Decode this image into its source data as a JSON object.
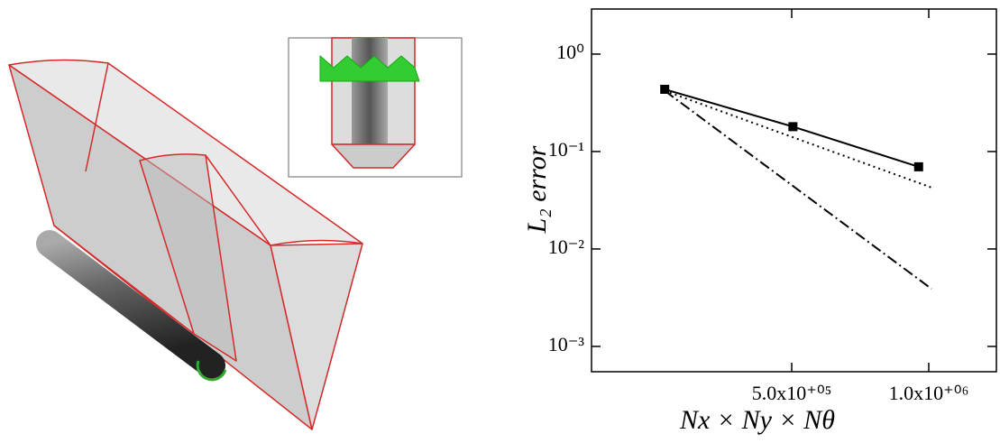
{
  "chart_data": {
    "type": "line",
    "x_label": "Nx × Ny × Nθ",
    "y_label": "L₂ error",
    "x_log": true,
    "y_log": true,
    "xlim": [
      181600,
      1408000
    ],
    "ylim": [
      0.00055,
      2.9
    ],
    "xticks": [
      {
        "value": 500000,
        "label": "5.0x10⁺⁰⁵"
      },
      {
        "value": 1000000,
        "label": "1.0x10⁺⁰⁶"
      }
    ],
    "yticks": [
      {
        "value": 1,
        "label": "10⁰"
      },
      {
        "value": 0.1,
        "label": "10⁻¹"
      },
      {
        "value": 0.01,
        "label": "10⁻²"
      },
      {
        "value": 0.001,
        "label": "10⁻³"
      }
    ],
    "series": [
      {
        "color": "#000000",
        "dash": "solid",
        "marker": "square",
        "x": [
          263000,
          503000,
          950000
        ],
        "values": [
          0.435,
          0.18,
          0.0697
        ]
      },
      {
        "color": "#000000",
        "dash": "dotted",
        "x": [
          263000,
          1014000
        ],
        "values": [
          0.42,
          0.0427
        ]
      },
      {
        "color": "#000000",
        "dash": "dashdot",
        "x": [
          263000,
          1014000
        ],
        "values": [
          0.42,
          0.0039
        ]
      }
    ]
  }
}
